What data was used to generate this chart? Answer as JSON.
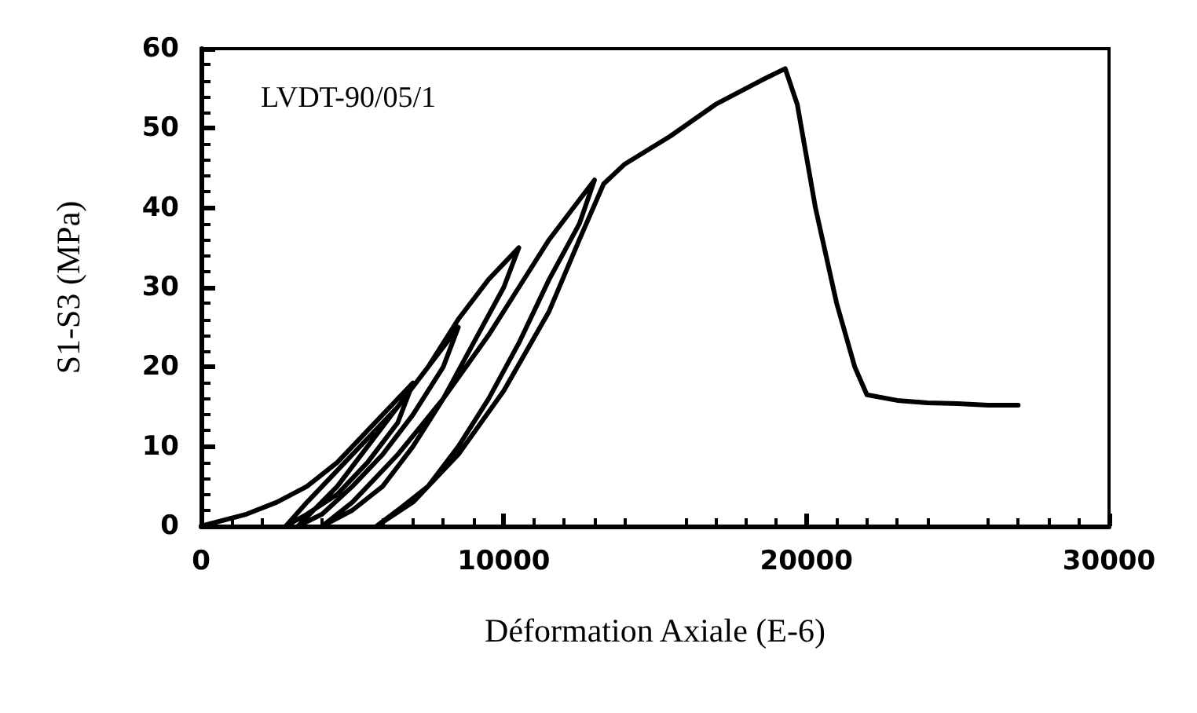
{
  "chart_data": {
    "type": "line",
    "xlabel": "Déformation Axiale (E-6)",
    "ylabel": "S1-S3 (MPa)",
    "annotations": [
      "LVDT-90/05/1"
    ],
    "xlim": [
      0,
      30000
    ],
    "xticks": [
      0,
      10000,
      20000,
      30000
    ],
    "ylim": [
      0,
      60
    ],
    "yticks": [
      0,
      10,
      20,
      30,
      40,
      50,
      60
    ],
    "grid": false,
    "marker": "none",
    "line_style": "solid",
    "series": [
      {
        "color": "#000000",
        "x": [
          0,
          1500,
          2500,
          3500,
          4500,
          5500,
          6500,
          7000,
          6500,
          5500,
          4500,
          3500,
          2800,
          3500,
          4500,
          5500,
          6500,
          7500,
          8500,
          8000,
          7000,
          6000,
          5000,
          4000,
          3200,
          4500,
          5500,
          6500,
          7500,
          8500,
          9500,
          10500,
          10000,
          9000,
          8000,
          7000,
          6000,
          5000,
          4000,
          5000,
          6500,
          8000,
          9500,
          10500,
          11500,
          12500,
          13000,
          12500,
          11500,
          10500,
          9500,
          8500,
          7500,
          6500,
          5800,
          7000,
          8500,
          10000,
          11500,
          12500,
          13300,
          14000,
          15500,
          17000,
          18500,
          19300,
          19700,
          20300,
          21000,
          21600,
          22000,
          23000,
          24000,
          25000,
          26000,
          27000
        ],
        "values": [
          0,
          1.5,
          3,
          5,
          8,
          12,
          16,
          18,
          13,
          8,
          4,
          1.5,
          0,
          3,
          7,
          11,
          15,
          20,
          25,
          20,
          14,
          9,
          5,
          1.5,
          0,
          5,
          10,
          15,
          20,
          26,
          31,
          35,
          30,
          23,
          16,
          10,
          5,
          2,
          0,
          3,
          9,
          16,
          24,
          30,
          36,
          41,
          43.5,
          38,
          31,
          23,
          16,
          10,
          5,
          2,
          0,
          3,
          9,
          17,
          27,
          36,
          43,
          45.5,
          49,
          53,
          56,
          57.5,
          53,
          40,
          28,
          20,
          16.5,
          15.8,
          15.5,
          15.4,
          15.2,
          15.2
        ]
      }
    ]
  }
}
